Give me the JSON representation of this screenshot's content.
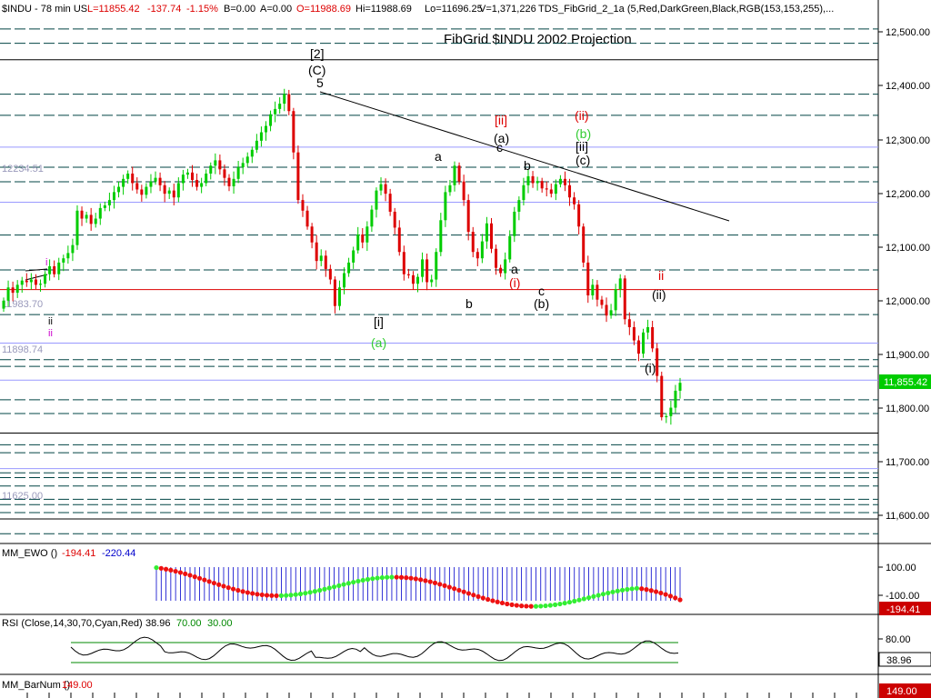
{
  "header": {
    "symbol": "$INDU - 78 min  US",
    "last": "L=11855.42",
    "change": "-137.74",
    "change_pct": "-1.15%",
    "bid": "B=0.00",
    "ask": "A=0.00",
    "open": "O=11988.69",
    "high": "Hi=11988.69",
    "low": "Lo=11696.25",
    "volume": "V=1,371,226",
    "indicator": "TDS_FibGrid_2_1a (5,Red,DarkGreen,Black,RGB(153,153,255),..."
  },
  "chart_title": "FibGrid $INDU 2002 Projection",
  "colors": {
    "up_bar": "#00cc00",
    "down_bar": "#dd0000",
    "fib_dash": "#004444",
    "fib_solid_black": "#000000",
    "fib_red": "#dd0000",
    "fib_blue": "#9999ff",
    "ewo_green_dot": "#33ee33",
    "ewo_red_dot": "#ee1111",
    "ewo_blue_hist": "#0000cc",
    "rsi_line": "#000000",
    "rsi_red": "#dd0000",
    "rsi_cyan": "#00aaff",
    "rsi_level": "#008800",
    "price_badge_bg": "#00cc00",
    "neg_badge_bg": "#cc0000"
  },
  "price_axis": {
    "ticks": [
      "12,500.00",
      "12,400.00",
      "12,300.00",
      "12,200.00",
      "12,100.00",
      "12,000.00",
      "11,900.00",
      "11,800.00",
      "11,700.00",
      "11,600.00"
    ],
    "tick_values": [
      12500,
      12400,
      12300,
      12200,
      12100,
      12000,
      11900,
      11800,
      11700,
      11600
    ],
    "current_price_label": "11,855.42"
  },
  "fib_levels_left_labels": [
    {
      "text": "12234.51",
      "value": 12234.51
    },
    {
      "text": "11983.70",
      "value": 11983.7
    },
    {
      "text": "11898.74",
      "value": 11898.74
    },
    {
      "text": "11625.00",
      "value": 11625.0
    }
  ],
  "wave_labels": [
    {
      "text": "[2]",
      "color": "#000000"
    },
    {
      "text": "(C)",
      "color": "#000000"
    },
    {
      "text": "5",
      "color": "#000000"
    },
    {
      "text": "[ii]",
      "color": "#dd0000"
    },
    {
      "text": "(a)",
      "color": "#000000"
    },
    {
      "text": "c",
      "color": "#000000"
    },
    {
      "text": "a",
      "color": "#000000"
    },
    {
      "text": "b",
      "color": "#000000"
    },
    {
      "text": "(ii)",
      "color": "#dd0000"
    },
    {
      "text": "(b)",
      "color": "#33cc33"
    },
    {
      "text": "[ii]",
      "color": "#000000"
    },
    {
      "text": "(c)",
      "color": "#000000"
    },
    {
      "text": "a",
      "color": "#000000"
    },
    {
      "text": "(i)",
      "color": "#dd0000"
    },
    {
      "text": "c",
      "color": "#000000"
    },
    {
      "text": "(b)",
      "color": "#000000"
    },
    {
      "text": "b",
      "color": "#000000"
    },
    {
      "text": "[i]",
      "color": "#000000"
    },
    {
      "text": "(a)",
      "color": "#33cc33"
    },
    {
      "text": "ii",
      "color": "#dd0000"
    },
    {
      "text": "(ii)",
      "color": "#000000"
    },
    {
      "text": "(i)",
      "color": "#000000"
    },
    {
      "text": "i",
      "color": "#cc00cc"
    },
    {
      "text": "ii",
      "color": "#000000"
    },
    {
      "text": "ii",
      "color": "#cc00cc"
    }
  ],
  "ewo_panel": {
    "label": "MM_EWO ()",
    "val1": "-194.41",
    "val2": "-220.44",
    "ticks": [
      "100.00",
      "-100.00"
    ],
    "badge": "-194.41"
  },
  "rsi_panel": {
    "label": "RSI (Close,14,30,70,Cyan,Red)",
    "val": "38.96",
    "upper": "70.00",
    "lower": "30.00",
    "ticks": [
      "80.00"
    ],
    "badge": "38.96"
  },
  "barnum_panel": {
    "label": "MM_BarNum ()",
    "val": "149.00",
    "badge": "149.00"
  },
  "chart_data": {
    "type": "candlestick",
    "title": "FibGrid $INDU 2002 Projection",
    "ylim": [
      11555,
      12540
    ],
    "fib_levels": [
      {
        "value": 12523,
        "style": "dash",
        "color": "#004444"
      },
      {
        "value": 12496,
        "style": "dash",
        "color": "#004444"
      },
      {
        "value": 12465,
        "style": "solid",
        "color": "#000000"
      },
      {
        "value": 12400,
        "style": "dash",
        "color": "#004444"
      },
      {
        "value": 12360,
        "style": "dash",
        "color": "#004444"
      },
      {
        "value": 12300,
        "style": "solid",
        "color": "#9999ff"
      },
      {
        "value": 12262,
        "style": "dash",
        "color": "#004444"
      },
      {
        "value": 12234.51,
        "style": "dash",
        "color": "#004444"
      },
      {
        "value": 12196,
        "style": "solid",
        "color": "#9999ff"
      },
      {
        "value": 12134,
        "style": "dash",
        "color": "#004444"
      },
      {
        "value": 12068,
        "style": "dash",
        "color": "#004444"
      },
      {
        "value": 12031,
        "style": "solid",
        "color": "#dd0000"
      },
      {
        "value": 11983.7,
        "style": "dash",
        "color": "#004444"
      },
      {
        "value": 11930,
        "style": "solid",
        "color": "#9999ff"
      },
      {
        "value": 11898.74,
        "style": "dash",
        "color": "#004444"
      },
      {
        "value": 11886,
        "style": "dash",
        "color": "#004444"
      },
      {
        "value": 11860,
        "style": "solid",
        "color": "#9999ff"
      },
      {
        "value": 11823,
        "style": "dash",
        "color": "#004444"
      },
      {
        "value": 11797,
        "style": "dash",
        "color": "#004444"
      },
      {
        "value": 11760,
        "style": "solid",
        "color": "#000000"
      },
      {
        "value": 11738,
        "style": "dash",
        "color": "#004444"
      },
      {
        "value": 11723,
        "style": "dash",
        "color": "#004444"
      },
      {
        "value": 11693,
        "style": "solid",
        "color": "#9999ff"
      },
      {
        "value": 11685,
        "style": "dash",
        "color": "#004444"
      },
      {
        "value": 11676,
        "style": "dash",
        "color": "#004444"
      },
      {
        "value": 11660,
        "style": "dash",
        "color": "#004444"
      },
      {
        "value": 11635,
        "style": "dash",
        "color": "#004444"
      },
      {
        "value": 11625.0,
        "style": "dash",
        "color": "#004444"
      },
      {
        "value": 11610,
        "style": "dash",
        "color": "#004444"
      },
      {
        "value": 11598,
        "style": "solid",
        "color": "#000000"
      },
      {
        "value": 11570,
        "style": "dash",
        "color": "#004444"
      }
    ],
    "close_path": [
      12010,
      12035,
      12025,
      12040,
      12048,
      12045,
      12050,
      12040,
      12042,
      12060,
      12075,
      12060,
      12082,
      12090,
      12100,
      12115,
      12180,
      12165,
      12172,
      12155,
      12165,
      12185,
      12190,
      12200,
      12215,
      12225,
      12240,
      12250,
      12232,
      12220,
      12210,
      12225,
      12235,
      12242,
      12228,
      12212,
      12218,
      12205,
      12232,
      12248,
      12252,
      12238,
      12225,
      12232,
      12250,
      12265,
      12275,
      12258,
      12242,
      12226,
      12240,
      12262,
      12270,
      12282,
      12295,
      12312,
      12328,
      12340,
      12362,
      12372,
      12382,
      12400,
      12368,
      12290,
      12200,
      12180,
      12150,
      12120,
      12085,
      12095,
      12070,
      12050,
      12000,
      12035,
      12062,
      12082,
      12105,
      12135,
      12120,
      12150,
      12182,
      12218,
      12230,
      12212,
      12178,
      12148,
      12102,
      12060,
      12058,
      12042,
      12055,
      12088,
      12045,
      12050,
      12102,
      12162,
      12215,
      12228,
      12265,
      12235,
      12200,
      12140,
      12102,
      12090,
      12122,
      12156,
      12108,
      12072,
      12062,
      12088,
      12132,
      12178,
      12200,
      12228,
      12245,
      12232,
      12236,
      12222,
      12220,
      12212,
      12230,
      12240,
      12228,
      12205,
      12192,
      12150,
      12082,
      12020,
      12040,
      12012,
      12002,
      11982,
      11992,
      12032,
      12052,
      11975,
      11960,
      11935,
      11910,
      11950,
      11960,
      11920,
      11868,
      11790,
      11792,
      11808,
      11840,
      11855
    ],
    "ewo_signs": "mostly positive in first half, negative around middle, then positive, then negative at end",
    "rsi_levels": {
      "upper": 70,
      "lower": 30
    },
    "rsi_last": 38.96,
    "ewo_last": -194.41
  }
}
